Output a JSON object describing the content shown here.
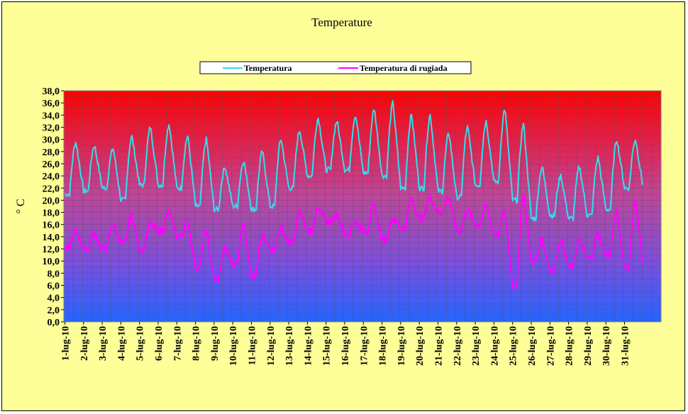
{
  "chart_data": {
    "type": "line",
    "title": "Temperature",
    "ylabel": "° C",
    "xlabel": "",
    "ylim": [
      0,
      38
    ],
    "ytick_step": 2,
    "ytick_labels": [
      "0,0",
      "2,0",
      "4,0",
      "6,0",
      "8,0",
      "10,0",
      "12,0",
      "14,0",
      "16,0",
      "18,0",
      "20,0",
      "22,0",
      "24,0",
      "26,0",
      "28,0",
      "30,0",
      "32,0",
      "34,0",
      "36,0",
      "38,0"
    ],
    "categories": [
      "1-lug-10",
      "2-lug-10",
      "3-lug-10",
      "4-lug-10",
      "5-lug-10",
      "6-lug-10",
      "7-lug-10",
      "8-lug-10",
      "9-lug-10",
      "10-lug-10",
      "11-lug-10",
      "12-lug-10",
      "13-lug-10",
      "14-lug-10",
      "15-lug-10",
      "16-lug-10",
      "17-lug-10",
      "18-lug-10",
      "19-lug-10",
      "20-lug-10",
      "21-lug-10",
      "22-lug-10",
      "23-lug-10",
      "24-lug-10",
      "25-lug-10",
      "26-lug-10",
      "27-lug-10",
      "28-lug-10",
      "29-lug-10",
      "30-lug-10",
      "31-lug-10"
    ],
    "grid": true,
    "legend": "top-center",
    "background": "vertical gradient red (top) to blue (bottom)",
    "series": [
      {
        "name": "Temperatura",
        "color": "#33ddee",
        "daily_min": [
          21.0,
          21.5,
          22.0,
          20.0,
          22.5,
          22.5,
          22.0,
          19.0,
          18.5,
          19.0,
          18.5,
          19.0,
          22.0,
          24.0,
          25.0,
          25.0,
          24.5,
          24.0,
          22.0,
          22.0,
          21.5,
          20.5,
          22.5,
          23.0,
          20.0,
          17.0,
          17.5,
          17.0,
          17.5,
          18.5,
          22.0
        ],
        "daily_max": [
          29.5,
          29.0,
          28.5,
          30.5,
          32.0,
          32.5,
          30.5,
          30.0,
          25.5,
          26.5,
          28.0,
          30.0,
          31.5,
          33.5,
          33.0,
          34.0,
          35.0,
          36.0,
          34.0,
          34.0,
          31.0,
          32.0,
          33.0,
          35.0,
          32.5,
          25.5,
          24.0,
          25.5,
          27.0,
          30.0,
          30.0
        ]
      },
      {
        "name": "Temperatura di rugiada",
        "color": "#ff00ff",
        "daily_min": [
          12.0,
          12.0,
          12.0,
          13.0,
          12.0,
          15.0,
          14.0,
          9.0,
          7.0,
          9.5,
          7.5,
          12.0,
          13.0,
          15.0,
          16.5,
          14.5,
          15.0,
          13.5,
          15.5,
          17.0,
          18.0,
          15.0,
          16.0,
          14.5,
          6.0,
          10.0,
          8.5,
          9.0,
          10.5,
          11.0,
          9.0
        ],
        "daily_max": [
          15.0,
          14.5,
          16.0,
          17.5,
          16.0,
          18.0,
          16.5,
          15.0,
          12.0,
          16.5,
          14.0,
          15.5,
          18.0,
          18.5,
          17.5,
          16.5,
          19.0,
          17.0,
          20.0,
          20.5,
          20.5,
          18.5,
          19.0,
          18.0,
          21.0,
          13.5,
          13.5,
          13.5,
          14.5,
          18.0,
          20.0
        ]
      }
    ]
  }
}
